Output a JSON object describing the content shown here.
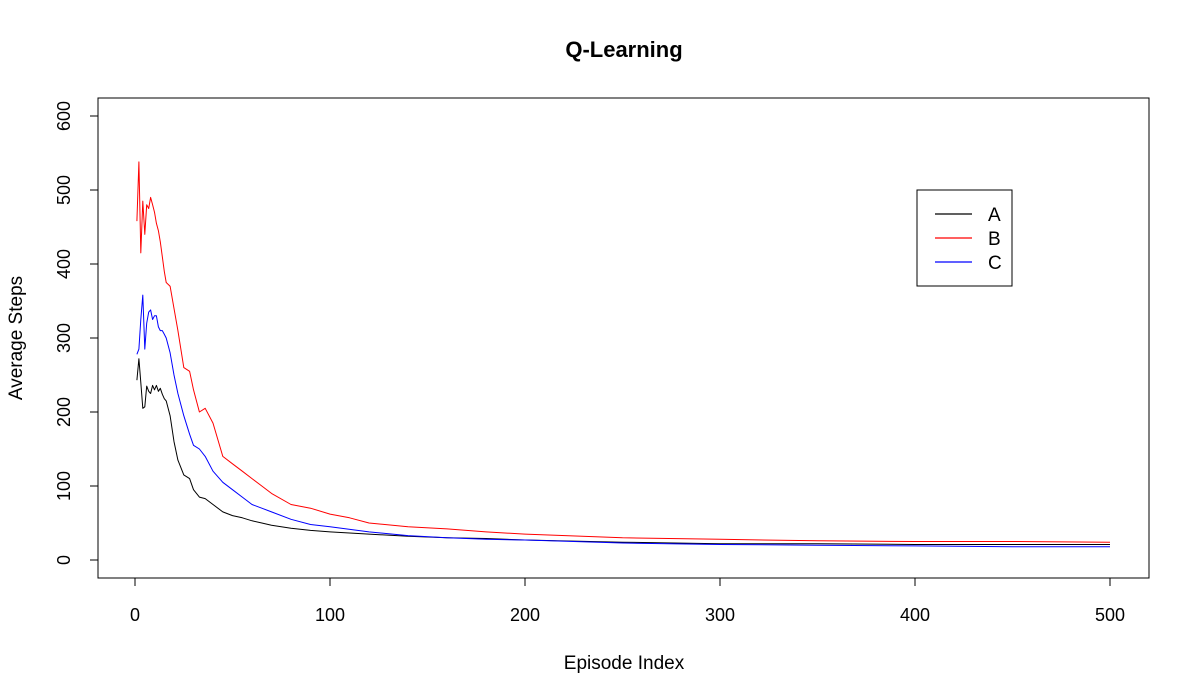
{
  "chart_data": {
    "type": "line",
    "title": "Q-Learning",
    "xlabel": "Episode Index",
    "ylabel": "Average Steps",
    "xlim": [
      0,
      500
    ],
    "ylim": [
      0,
      600
    ],
    "xticks": [
      0,
      100,
      200,
      300,
      400,
      500
    ],
    "yticks": [
      0,
      100,
      200,
      300,
      400,
      500,
      600
    ],
    "grid": false,
    "legend_position": "top-right",
    "series": [
      {
        "name": "A",
        "color": "#000000",
        "x": [
          1,
          2,
          3,
          4,
          5,
          6,
          7,
          8,
          9,
          10,
          11,
          12,
          13,
          14,
          15,
          16,
          18,
          20,
          22,
          25,
          28,
          30,
          33,
          36,
          40,
          45,
          50,
          55,
          60,
          65,
          70,
          80,
          90,
          100,
          120,
          140,
          160,
          180,
          200,
          250,
          300,
          350,
          400,
          450,
          500
        ],
        "y": [
          243,
          272,
          240,
          205,
          207,
          235,
          228,
          225,
          236,
          230,
          236,
          228,
          232,
          224,
          218,
          215,
          195,
          160,
          135,
          115,
          110,
          95,
          85,
          83,
          75,
          65,
          60,
          57,
          53,
          50,
          47,
          43,
          40,
          38,
          35,
          32,
          30,
          29,
          27,
          24,
          22,
          22,
          21,
          21,
          21
        ]
      },
      {
        "name": "B",
        "color": "#ff0000",
        "x": [
          1,
          2,
          3,
          4,
          5,
          6,
          7,
          8,
          9,
          10,
          11,
          12,
          13,
          14,
          15,
          16,
          18,
          20,
          22,
          25,
          28,
          30,
          33,
          36,
          40,
          45,
          50,
          55,
          60,
          65,
          70,
          80,
          90,
          100,
          110,
          120,
          140,
          160,
          180,
          200,
          250,
          300,
          350,
          400,
          450,
          500
        ],
        "y": [
          458,
          538,
          415,
          485,
          440,
          480,
          475,
          490,
          480,
          470,
          455,
          445,
          430,
          410,
          390,
          375,
          370,
          340,
          310,
          260,
          255,
          230,
          200,
          205,
          185,
          140,
          130,
          120,
          110,
          100,
          90,
          75,
          70,
          62,
          57,
          50,
          45,
          42,
          38,
          35,
          30,
          28,
          26,
          25,
          25,
          24
        ]
      },
      {
        "name": "C",
        "color": "#0000ff",
        "x": [
          1,
          2,
          3,
          4,
          5,
          6,
          7,
          8,
          9,
          10,
          11,
          12,
          13,
          14,
          15,
          16,
          18,
          20,
          22,
          25,
          28,
          30,
          33,
          36,
          40,
          45,
          50,
          55,
          60,
          65,
          70,
          80,
          90,
          100,
          120,
          140,
          160,
          180,
          200,
          250,
          300,
          350,
          400,
          450,
          500
        ],
        "y": [
          278,
          285,
          325,
          358,
          285,
          320,
          335,
          338,
          325,
          330,
          330,
          315,
          310,
          310,
          305,
          300,
          280,
          250,
          225,
          195,
          170,
          155,
          150,
          140,
          120,
          105,
          95,
          85,
          75,
          70,
          65,
          55,
          48,
          45,
          38,
          33,
          30,
          28,
          27,
          23,
          21,
          20,
          19,
          18,
          18
        ]
      }
    ]
  }
}
